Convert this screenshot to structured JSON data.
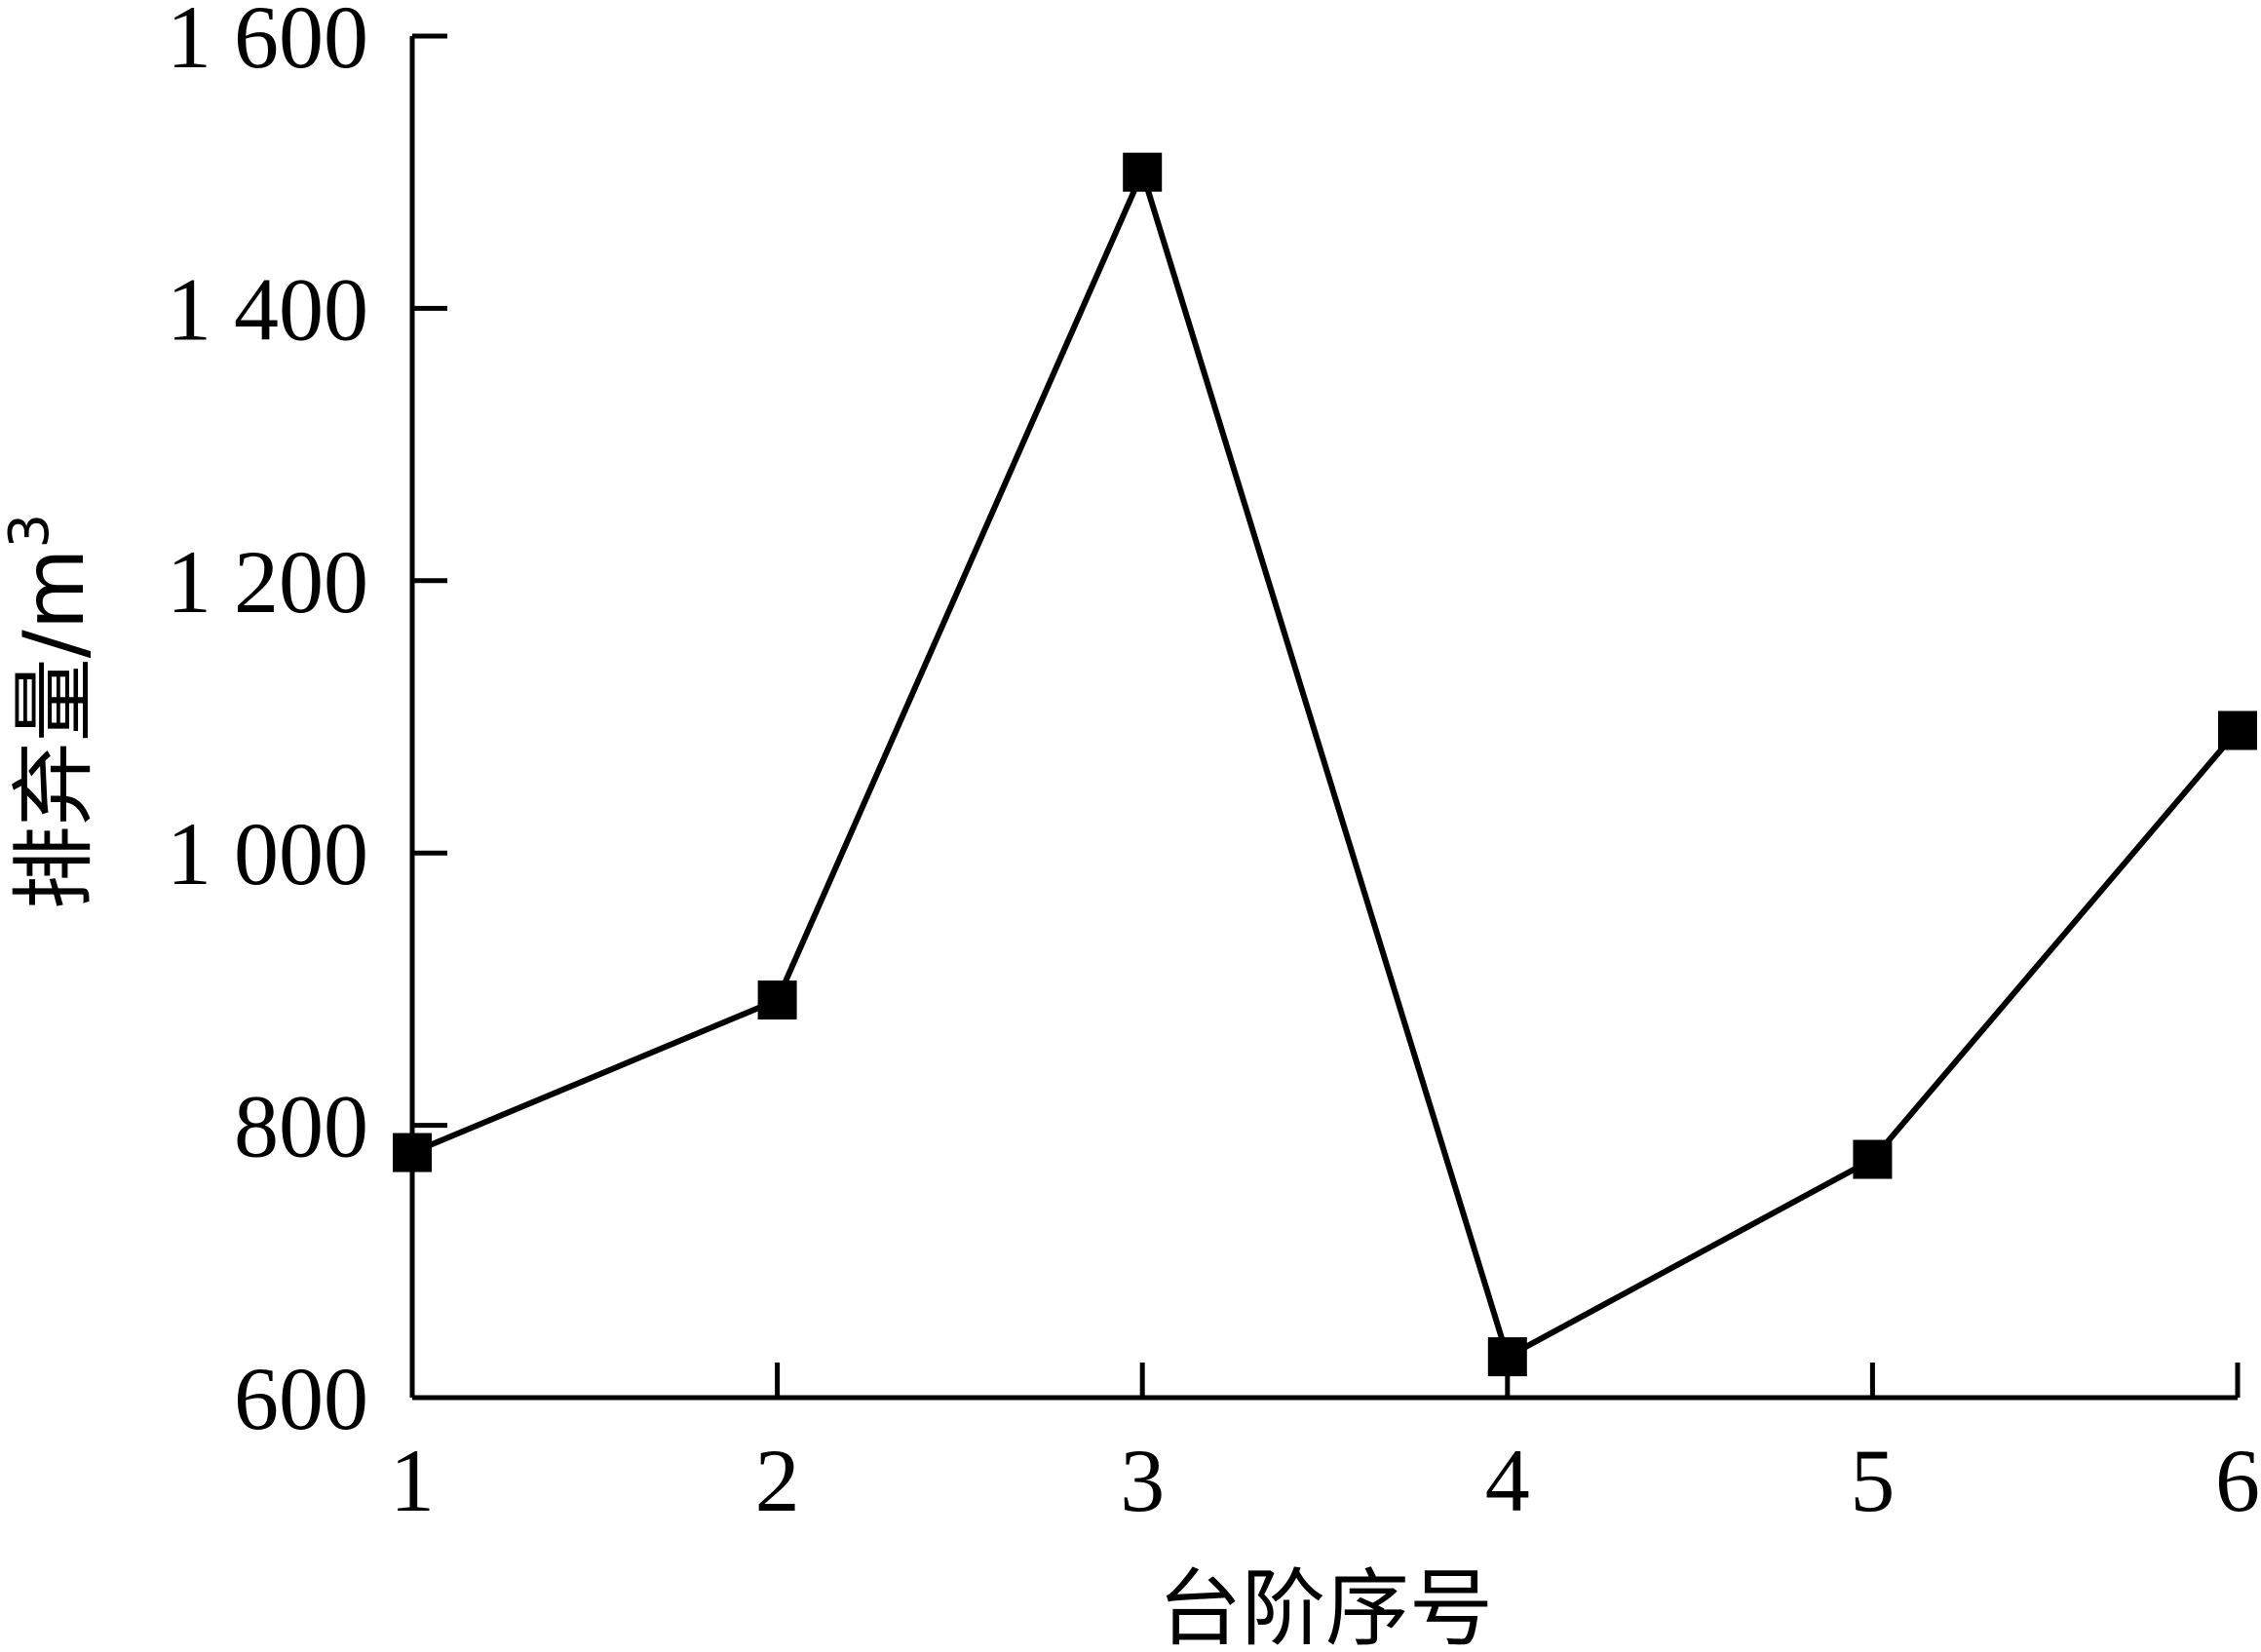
{
  "chart_data": {
    "type": "line",
    "title": "",
    "xlabel": "台阶序号",
    "ylabel": "排弃量/m",
    "ylabel_superscript": "3",
    "x": [
      1,
      2,
      3,
      4,
      5,
      6
    ],
    "series": [
      {
        "values": [
          780,
          892,
          1500,
          630,
          775,
          1090
        ],
        "marker": "square",
        "color": "#000000"
      }
    ],
    "xlim": [
      1,
      6
    ],
    "ylim": [
      600,
      1600
    ],
    "xticks": [
      "1",
      "2",
      "3",
      "4",
      "5",
      "6"
    ],
    "yticks": [
      600,
      800,
      1000,
      1200,
      1400,
      1600
    ],
    "ytick_labels": [
      "600",
      "800",
      "1 000",
      "1 200",
      "1 400",
      "1 600"
    ],
    "grid": false,
    "legend": "none"
  }
}
